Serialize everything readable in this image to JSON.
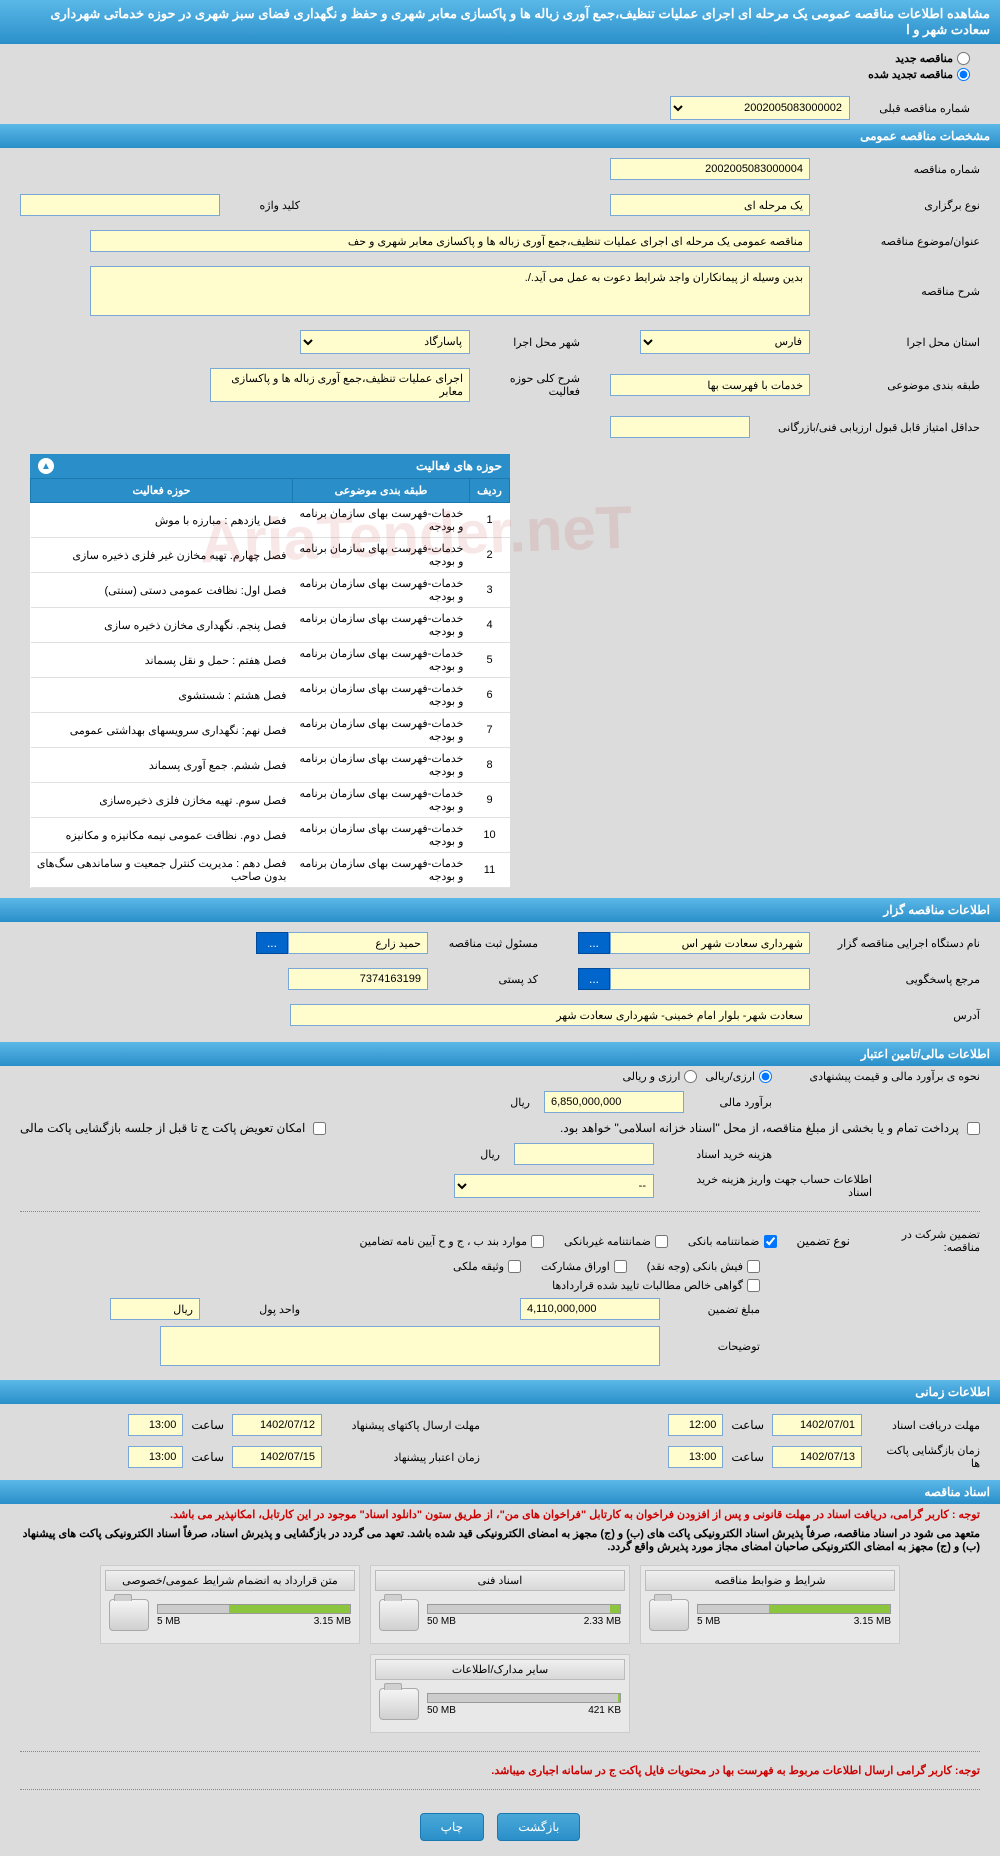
{
  "page_title": "مشاهده اطلاعات مناقصه عمومی یک مرحله ای اجرای عملیات تنظیف،جمع آوری زباله ها و پاکسازی معابر شهری و حفظ و نگهداری فضای سبز شهری در حوزه خدماتی شهرداری سعادت شهر و ا",
  "radio": {
    "new_tender_label": "مناقصه جدید",
    "renewed_tender_label": "مناقصه تجدید شده",
    "renewed_checked": true
  },
  "prev_number": {
    "label": "شماره مناقصه قبلی",
    "value": "2002005083000002"
  },
  "sections": {
    "general": "مشخصات مناقصه عمومی",
    "holder": "اطلاعات مناقصه گزار",
    "financial": "اطلاعات مالی/تامین اعتبار",
    "timing": "اطلاعات زمانی",
    "documents": "اسناد مناقصه"
  },
  "general": {
    "tender_number_label": "شماره مناقصه",
    "tender_number": "2002005083000004",
    "holding_type_label": "نوع برگزاری",
    "holding_type": "یک مرحله ای",
    "keyword_label": "کلید واژه",
    "keyword": "",
    "subject_label": "عنوان/موضوع مناقصه",
    "subject": "مناقصه عمومی یک مرحله ای اجرای عملیات تنظیف،جمع آوری زباله ها و پاکسازی معابر شهری و حف",
    "description_label": "شرح مناقصه",
    "description": "بدین وسیله از پیمانکاران واجد شرایط دعوت به عمل می آید./.",
    "province_label": "استان محل اجرا",
    "province": "فارس",
    "city_label": "شهر محل اجرا",
    "city": "پاسارگاد",
    "category_label": "طبقه بندی موضوعی",
    "category": "خدمات با فهرست بها",
    "activity_summary_label": "شرح کلی حوزه فعالیت",
    "activity_summary": "اجرای عملیات تنظیف،جمع آوری زباله ها و پاکسازی معابر",
    "min_score_label": "حداقل امتیاز قابل قبول ارزیابی فنی/بازرگانی",
    "min_score": ""
  },
  "activities": {
    "header": "حوزه های فعالیت",
    "cols": {
      "row": "ردیف",
      "category": "طبقه بندی موضوعی",
      "activity": "حوزه فعالیت"
    },
    "rows": [
      {
        "n": "1",
        "cat": "خدمات-فهرست بهای سازمان برنامه و بودجه",
        "act": "فصل یازدهم : مبارزه با موش"
      },
      {
        "n": "2",
        "cat": "خدمات-فهرست بهای سازمان برنامه و بودجه",
        "act": "فصل چهارم. تهیه مخازن غیر فلزی ذخیره سازی"
      },
      {
        "n": "3",
        "cat": "خدمات-فهرست بهای سازمان برنامه و بودجه",
        "act": "فصل اول: نظافت عمومی دستی (سنتی)"
      },
      {
        "n": "4",
        "cat": "خدمات-فهرست بهای سازمان برنامه و بودجه",
        "act": "فصل پنجم. نگهداری مخازن ذخیره سازی"
      },
      {
        "n": "5",
        "cat": "خدمات-فهرست بهای سازمان برنامه و بودجه",
        "act": "فصل هفتم : حمل و نقل پسماند"
      },
      {
        "n": "6",
        "cat": "خدمات-فهرست بهای سازمان برنامه و بودجه",
        "act": "فصل هشتم : شستشوی"
      },
      {
        "n": "7",
        "cat": "خدمات-فهرست بهای سازمان برنامه و بودجه",
        "act": "فصل نهم: نگهداری سرویسهای بهداشتی عمومی"
      },
      {
        "n": "8",
        "cat": "خدمات-فهرست بهای سازمان برنامه و بودجه",
        "act": "فصل ششم. جمع آوری پسماند"
      },
      {
        "n": "9",
        "cat": "خدمات-فهرست بهای سازمان برنامه و بودجه",
        "act": "فصل سوم. تهیه مخازن فلزی ذخیره‌سازی"
      },
      {
        "n": "10",
        "cat": "خدمات-فهرست بهای سازمان برنامه و بودجه",
        "act": "فصل دوم. نظافت عمومی نیمه مکانیزه و مکانیزه"
      },
      {
        "n": "11",
        "cat": "خدمات-فهرست بهای سازمان برنامه و بودجه",
        "act": "فصل دهم : مدیریت کنترل جمعیت و ساماندهی سگ‌های بدون صاحب"
      }
    ]
  },
  "holder": {
    "org_label": "نام دستگاه اجرایی مناقصه گزار",
    "org": "شهرداری سعادت شهر اس",
    "registrar_label": "مسئول ثبت مناقصه",
    "registrar": "حمید زارع",
    "responder_label": "مرجع پاسخگویی",
    "responder": "",
    "postal_label": "کد پستی",
    "postal": "7374163199",
    "address_label": "آدرس",
    "address": "سعادت شهر- بلوار امام خمینی- شهرداری سعادت شهر"
  },
  "financial": {
    "estimate_type_label": "نحوه ی برآورد مالی و قیمت پیشنهادی",
    "opt_rial": "ارزی/ریالی",
    "opt_currency": "ارزی و ریالی",
    "estimate_label": "برآورد مالی",
    "estimate_value": "6,850,000,000",
    "rial": "ریال",
    "payment_note": "پرداخت تمام و یا بخشی از مبلغ مناقصه، از محل \"اسناد خزانه اسلامی\" خواهد بود.",
    "swap_label": "امکان تعویض پاکت ج تا قبل از جلسه بازگشایی پاکت مالی",
    "doc_cost_label": "هزینه خرید اسناد",
    "doc_cost": "",
    "account_label": "اطلاعات حساب جهت واریز هزینه خرید اسناد",
    "account": "--",
    "guarantee_label": "تضمین شرکت در مناقصه:",
    "guarantee_type_label": "نوع تضمین",
    "g_bank": "ضمانتنامه بانکی",
    "g_nonbank": "ضمانتنامه غیربانکی",
    "g_items": "موارد بند ب ، ج و ح آیین نامه تضامین",
    "g_cash": "فیش بانکی (وجه نقد)",
    "g_securities": "اوراق مشارکت",
    "g_property": "وثیقه ملکی",
    "g_receivables": "گواهی خالص مطالبات تایید شده قراردادها",
    "guarantee_amount_label": "مبلغ تضمین",
    "guarantee_amount": "4,110,000,000",
    "currency_unit_label": "واحد پول",
    "currency_unit": "ریال",
    "notes_label": "توضیحات"
  },
  "timing": {
    "receive_docs_label": "مهلت دریافت اسناد",
    "receive_docs_date": "1402/07/01",
    "receive_docs_time": "12:00",
    "send_offer_label": "مهلت ارسال پاکتهای پیشنهاد",
    "send_offer_date": "1402/07/12",
    "send_offer_time": "13:00",
    "open_label": "زمان بازگشایی پاکت ها",
    "open_date": "1402/07/13",
    "open_time": "13:00",
    "validity_label": "زمان اعتبار پیشنهاد",
    "validity_date": "1402/07/15",
    "validity_time": "13:00",
    "time_label": "ساعت"
  },
  "notices": {
    "n1": "توجه : کاربر گرامی، دریافت اسناد در مهلت قانونی و پس از افزودن فراخوان به کارتابل \"فراخوان های من\"، از طریق ستون \"دانلود اسناد\" موجود در این کارتابل، امکانپذیر می باشد.",
    "n2": "متعهد می شود در اسناد مناقصه، صرفاً پذیرش اسناد الکترونیکی پاکت های (ب) و (ج) مجهز به امضای الکترونیکی قید شده باشد. تعهد می گردد در بازگشایی و پذیرش اسناد، صرفاً اسناد الکترونیکی پاکت های پیشنهاد (ب) و (ج) مجهز به امضای الکترونیکی صاحبان امضای مجاز مورد پذیرش واقع گردد.",
    "n3": "توجه: کاربر گرامی ارسال اطلاعات مربوط به فهرست بها در محتویات فایل پاکت ج در سامانه اجباری میباشد."
  },
  "documents": [
    {
      "title": "شرایط و ضوابط مناقصه",
      "used": "3.15 MB",
      "total": "5 MB",
      "pct": 63
    },
    {
      "title": "اسناد فنی",
      "used": "2.33 MB",
      "total": "50 MB",
      "pct": 5
    },
    {
      "title": "متن قرارداد به انضمام شرایط عمومی/خصوصی",
      "used": "3.15 MB",
      "total": "5 MB",
      "pct": 63
    },
    {
      "title": "سایر مدارک/اطلاعات",
      "used": "421 KB",
      "total": "50 MB",
      "pct": 1
    }
  ],
  "buttons": {
    "back": "بازگشت",
    "print": "چاپ",
    "dots": "..."
  },
  "watermark": "AriaTender.neT"
}
